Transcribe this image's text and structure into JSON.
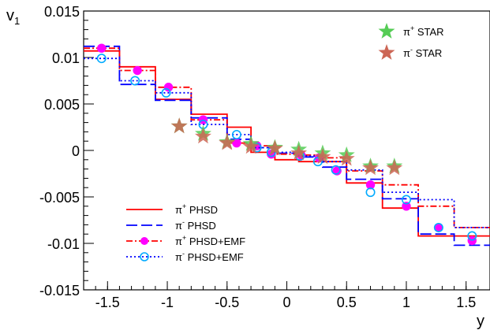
{
  "chart_data": {
    "type": "line",
    "xlabel": "y",
    "ylabel": "v",
    "ylabel_sub": "1",
    "xlim": [
      -1.7,
      1.7
    ],
    "ylim": [
      -0.015,
      0.015
    ],
    "xticks": [
      -1.5,
      -1,
      -0.5,
      0,
      0.5,
      1,
      1.5
    ],
    "xtick_labels": [
      "-1.5",
      "-1",
      "-0.5",
      "0",
      "0.5",
      "1",
      "1.5"
    ],
    "yticks": [
      -0.015,
      -0.01,
      -0.005,
      0,
      0.005,
      0.01,
      0.015
    ],
    "ytick_labels": [
      "-0.015",
      "-0.01",
      "-0.005",
      "0",
      "0.005",
      "0.01",
      "0.015"
    ],
    "bin_edges": [
      -1.7,
      -1.4,
      -1.1,
      -0.8,
      -0.5,
      -0.3,
      -0.1,
      0.1,
      0.3,
      0.5,
      0.8,
      1.1,
      1.4,
      1.7
    ],
    "series": [
      {
        "key": "pi_plus_phsd",
        "style": "step",
        "color": "#ff0000",
        "dash": "",
        "legend": {
          "particle": "π",
          "charge": "+",
          "label": "PHSD"
        },
        "values": [
          0.0107,
          0.009,
          0.0055,
          0.0039,
          0.0025,
          -0.0002,
          -0.001,
          -0.0012,
          -0.0012,
          -0.0035,
          -0.0062,
          -0.0092,
          -0.0092
        ]
      },
      {
        "key": "pi_minus_phsd",
        "style": "step",
        "color": "#0000ff",
        "dash": "14,5",
        "legend": {
          "particle": "π",
          "charge": "-",
          "label": "PHSD"
        },
        "values": [
          0.0112,
          0.0071,
          0.0054,
          0.0035,
          0.0012,
          0.0003,
          -0.0003,
          -0.0007,
          -0.0018,
          -0.0031,
          -0.0052,
          -0.009,
          -0.0102
        ]
      },
      {
        "key": "pi_plus_phsd_emf",
        "style": "step-markers",
        "color": "#ff0000",
        "dash": "8,3,2,3",
        "marker": "filled-circle",
        "marker_color": "#ff00ff",
        "legend": {
          "particle": "π",
          "charge": "+",
          "label": "PHSD+EMF"
        },
        "values": [
          0.011,
          0.0086,
          0.0068,
          0.0033,
          0.0008,
          0.0005,
          -0.0004,
          -0.0005,
          -0.0008,
          -0.0022,
          -0.0037,
          -0.006,
          -0.0083,
          -0.0097
        ],
        "x": [
          -1.55,
          -1.25,
          -0.99,
          -0.7,
          -0.42,
          -0.25,
          -0.13,
          0.12,
          0.27,
          0.42,
          0.7,
          1.0,
          1.27,
          1.55
        ]
      },
      {
        "key": "pi_minus_phsd_emf",
        "style": "step-markers",
        "color": "#0000ff",
        "dash": "2,3",
        "marker": "open-circle",
        "marker_color": "#00aaff",
        "legend": {
          "particle": "π",
          "charge": "-",
          "label": "PHSD+EMF"
        },
        "values": [
          0.0099,
          0.0075,
          0.0062,
          0.0028,
          0.0017,
          0.0003,
          -0.0002,
          -0.0006,
          -0.0012,
          -0.0021,
          -0.0045,
          -0.0053,
          -0.0083,
          -0.0092
        ],
        "x": [
          -1.55,
          -1.27,
          -1.01,
          -0.7,
          -0.42,
          -0.25,
          -0.13,
          0.11,
          0.26,
          0.41,
          0.7,
          1.0,
          1.27,
          1.55
        ]
      }
    ],
    "star_series": [
      {
        "key": "pi_plus_star",
        "color": "#55cc55",
        "legend": {
          "particle": "π",
          "charge": "+",
          "label": "STAR"
        },
        "x": [
          -0.9,
          -0.7,
          -0.5,
          -0.3,
          -0.1,
          0.1,
          0.3,
          0.5,
          0.7,
          0.9
        ],
        "values": [
          0.0026,
          0.0018,
          0.0009,
          0.0007,
          0.0003,
          0.0001,
          -0.0003,
          -0.0005,
          -0.0017,
          -0.0017
        ]
      },
      {
        "key": "pi_minus_star",
        "color": "#cc6655",
        "legend": {
          "particle": "π",
          "charge": "-",
          "label": "STAR"
        },
        "x": [
          -0.9,
          -0.7,
          -0.5,
          -0.3,
          -0.1,
          0.1,
          0.3,
          0.5,
          0.7,
          0.9
        ],
        "values": [
          0.0026,
          0.0015,
          0.0008,
          0.0004,
          0.0002,
          -0.0003,
          -0.0007,
          -0.0009,
          -0.0019,
          -0.0019
        ]
      }
    ]
  }
}
